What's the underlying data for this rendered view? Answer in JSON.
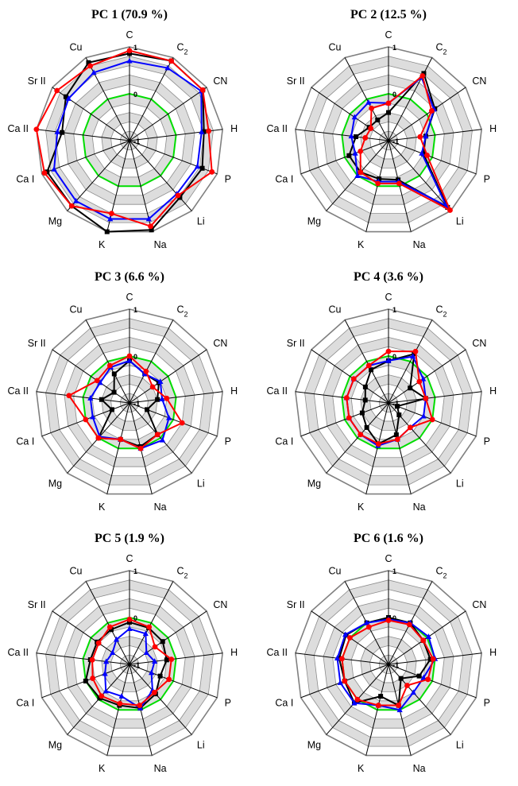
{
  "chart_data": [
    {
      "type": "radar",
      "title": "PC 1 (70.9 %)",
      "axes": [
        "C",
        "C2",
        "CN",
        "H",
        "P",
        "Li",
        "Na",
        "K",
        "Mg",
        "Ca I",
        "Ca II",
        "Sr II",
        "Cu"
      ],
      "range": [
        -1,
        1
      ],
      "ticks": [
        {
          "value": 1,
          "label": "1"
        },
        {
          "value": 0,
          "label": "0"
        },
        {
          "value": -1,
          "label": "-1"
        }
      ],
      "series": [
        {
          "color": "#000000",
          "marker": "square",
          "values": [
            0.86,
            0.92,
            0.9,
            0.6,
            0.66,
            0.62,
            0.96,
            1.0,
            0.86,
            0.88,
            0.45,
            0.65,
            0.88
          ]
        },
        {
          "color": "#0000ff",
          "marker": "triangle",
          "values": [
            0.7,
            0.75,
            0.86,
            0.55,
            0.55,
            0.52,
            0.72,
            0.72,
            0.72,
            0.72,
            0.55,
            0.58,
            0.64
          ]
        },
        {
          "color": "#ff0000",
          "marker": "circle",
          "values": [
            0.92,
            0.92,
            0.9,
            0.7,
            0.88,
            0.56,
            0.88,
            0.6,
            0.86,
            0.94,
            1.0,
            0.88,
            0.8
          ]
        }
      ]
    },
    {
      "type": "radar",
      "title": "PC 2 (12.5 %)",
      "axes": [
        "C",
        "C2",
        "CN",
        "H",
        "P",
        "Li",
        "Na",
        "K",
        "Mg",
        "Ca I",
        "Ca II",
        "Sr II",
        "Cu"
      ],
      "range": [
        -1,
        1
      ],
      "ticks": [
        {
          "value": 1,
          "label": "1"
        },
        {
          "value": 0,
          "label": "0"
        },
        {
          "value": -1,
          "label": "-1"
        }
      ],
      "series": [
        {
          "color": "#000000",
          "marker": "square",
          "values": [
            -0.4,
            0.62,
            0.2,
            -0.2,
            -0.2,
            0.9,
            -0.14,
            -0.16,
            -0.1,
            -0.1,
            -0.3,
            -0.5,
            -0.5
          ]
        },
        {
          "color": "#0000ff",
          "marker": "triangle",
          "values": [
            -0.2,
            0.52,
            0.18,
            -0.2,
            -0.24,
            0.86,
            -0.1,
            -0.1,
            0.0,
            -0.24,
            -0.2,
            -0.12,
            -0.08
          ]
        },
        {
          "color": "#ff0000",
          "marker": "circle",
          "values": [
            -0.2,
            0.56,
            0.12,
            -0.32,
            -0.12,
            0.98,
            -0.06,
            -0.06,
            -0.1,
            -0.36,
            -0.5,
            -0.54,
            -0.22
          ]
        }
      ]
    },
    {
      "type": "radar",
      "title": "PC 3 (6.6 %)",
      "axes": [
        "C",
        "C2",
        "CN",
        "H",
        "P",
        "Li",
        "Na",
        "K",
        "Mg",
        "Ca I",
        "Ca II",
        "Sr II",
        "Cu"
      ],
      "range": [
        -1,
        1
      ],
      "ticks": [
        {
          "value": 1,
          "label": "1"
        },
        {
          "value": 0,
          "label": "0"
        },
        {
          "value": -1,
          "label": "-1"
        }
      ],
      "series": [
        {
          "color": "#000000",
          "marker": "square",
          "values": [
            -0.1,
            -0.3,
            -0.24,
            -0.4,
            -0.6,
            -0.1,
            -0.04,
            -0.2,
            0.0,
            -0.6,
            -0.4,
            -0.6,
            -0.3
          ]
        },
        {
          "color": "#0000ff",
          "marker": "triangle",
          "values": [
            -0.1,
            -0.3,
            -0.2,
            -0.3,
            -0.1,
            0.06,
            0.0,
            -0.2,
            -0.04,
            -0.16,
            -0.16,
            -0.24,
            -0.14
          ]
        },
        {
          "color": "#ff0000",
          "marker": "circle",
          "values": [
            0.0,
            -0.24,
            -0.4,
            -0.2,
            0.2,
            -0.1,
            0.0,
            -0.2,
            0.0,
            0.0,
            0.3,
            -0.16,
            -0.1
          ]
        }
      ]
    },
    {
      "type": "radar",
      "title": "PC 4 (3.6 %)",
      "axes": [
        "C",
        "C2",
        "CN",
        "H",
        "P",
        "Li",
        "Na",
        "K",
        "Mg",
        "Ca I",
        "Ca II",
        "Sr II",
        "Cu"
      ],
      "range": [
        -1,
        1
      ],
      "ticks": [
        {
          "value": 1,
          "label": "1"
        },
        {
          "value": 0,
          "label": "0"
        },
        {
          "value": -1,
          "label": "-1"
        }
      ],
      "series": [
        {
          "color": "#000000",
          "marker": "square",
          "values": [
            -0.1,
            0.18,
            -0.44,
            -0.2,
            -0.8,
            -0.66,
            -0.3,
            -0.1,
            -0.3,
            -0.4,
            -0.5,
            -0.4,
            -0.2
          ]
        },
        {
          "color": "#0000ff",
          "marker": "triangle",
          "values": [
            -0.1,
            0.12,
            -0.1,
            -0.2,
            -0.2,
            -0.3,
            -0.2,
            -0.06,
            -0.1,
            -0.1,
            -0.1,
            -0.1,
            -0.1
          ]
        },
        {
          "color": "#ff0000",
          "marker": "circle",
          "values": [
            0.1,
            0.24,
            -0.2,
            -0.2,
            0.0,
            -0.3,
            -0.2,
            -0.1,
            -0.1,
            -0.1,
            -0.1,
            -0.1,
            -0.1
          ]
        }
      ]
    },
    {
      "type": "radar",
      "title": "PC 5 (1.9 %)",
      "axes": [
        "C",
        "C2",
        "CN",
        "H",
        "P",
        "Li",
        "Na",
        "K",
        "Mg",
        "Ca I",
        "Ca II",
        "Sr II",
        "Cu"
      ],
      "range": [
        -1,
        1
      ],
      "ticks": [
        {
          "value": 1,
          "label": "1"
        },
        {
          "value": 0,
          "label": "0"
        },
        {
          "value": -1,
          "label": "-1"
        }
      ],
      "series": [
        {
          "color": "#000000",
          "marker": "square",
          "values": [
            -0.1,
            -0.12,
            -0.14,
            -0.2,
            -0.3,
            -0.16,
            -0.04,
            -0.1,
            -0.04,
            0.0,
            -0.16,
            -0.16,
            -0.16
          ]
        },
        {
          "color": "#0000ff",
          "marker": "triangle",
          "values": [
            -0.24,
            -0.26,
            -0.56,
            -0.46,
            -0.5,
            -0.26,
            -0.04,
            -0.3,
            -0.24,
            -0.44,
            -0.5,
            -0.56,
            -0.4
          ]
        },
        {
          "color": "#ff0000",
          "marker": "circle",
          "values": [
            -0.04,
            -0.1,
            -0.34,
            -0.1,
            -0.1,
            -0.2,
            -0.1,
            -0.14,
            -0.1,
            -0.16,
            -0.2,
            -0.2,
            -0.1
          ]
        }
      ]
    },
    {
      "type": "radar",
      "title": "PC 6 (1.6 %)",
      "axes": [
        "C",
        "C2",
        "CN",
        "H",
        "P",
        "Li",
        "Na",
        "K",
        "Mg",
        "Ca I",
        "Ca II",
        "Sr II",
        "Cu"
      ],
      "range": [
        -1,
        1
      ],
      "ticks": [
        {
          "value": 1,
          "label": "1"
        },
        {
          "value": 0,
          "label": "0"
        },
        {
          "value": -1,
          "label": "-1"
        }
      ],
      "series": [
        {
          "color": "#000000",
          "marker": "square",
          "values": [
            0.0,
            0.0,
            -0.1,
            -0.1,
            -0.3,
            -0.6,
            -0.1,
            -0.3,
            0.1,
            0.0,
            0.06,
            0.1,
            0.0
          ]
        },
        {
          "color": "#0000ff",
          "marker": "triangle",
          "values": [
            -0.04,
            0.0,
            0.04,
            0.0,
            -0.2,
            -0.2,
            0.0,
            -0.1,
            0.1,
            0.1,
            0.1,
            0.12,
            0.0
          ]
        },
        {
          "color": "#ff0000",
          "marker": "circle",
          "values": [
            -0.06,
            -0.04,
            -0.1,
            -0.04,
            -0.1,
            -0.4,
            -0.1,
            -0.1,
            0.0,
            0.0,
            0.0,
            0.0,
            -0.1
          ]
        }
      ]
    }
  ]
}
